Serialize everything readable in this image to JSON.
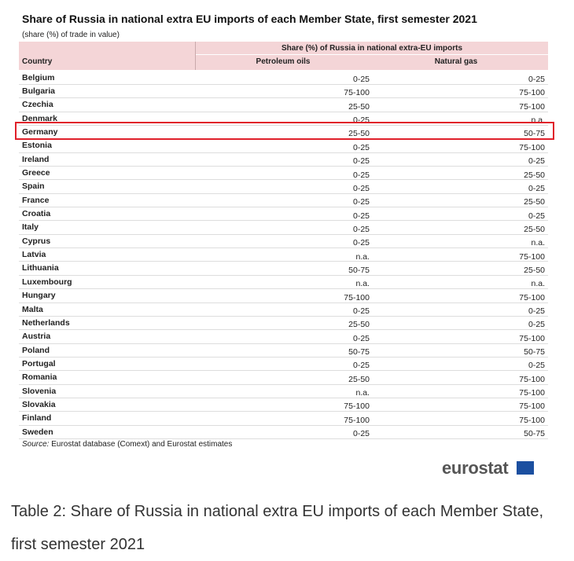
{
  "title": "Share of Russia in national extra EU imports of each Member State, first semester 2021",
  "subtitle": "(share (%) of trade in value)",
  "table": {
    "group_header": "Share (%) of Russia in national extra-EU imports",
    "columns": [
      "Country",
      "Petroleum oils",
      "Natural gas"
    ],
    "rows": [
      [
        "Belgium",
        "0-25",
        "0-25"
      ],
      [
        "Bulgaria",
        "75-100",
        "75-100"
      ],
      [
        "Czechia",
        "25-50",
        "75-100"
      ],
      [
        "Denmark",
        "0-25",
        "n.a."
      ],
      [
        "Germany",
        "25-50",
        "50-75"
      ],
      [
        "Estonia",
        "0-25",
        "75-100"
      ],
      [
        "Ireland",
        "0-25",
        "0-25"
      ],
      [
        "Greece",
        "0-25",
        "25-50"
      ],
      [
        "Spain",
        "0-25",
        "0-25"
      ],
      [
        "France",
        "0-25",
        "25-50"
      ],
      [
        "Croatia",
        "0-25",
        "0-25"
      ],
      [
        "Italy",
        "0-25",
        "25-50"
      ],
      [
        "Cyprus",
        "0-25",
        "n.a."
      ],
      [
        "Latvia",
        "n.a.",
        "75-100"
      ],
      [
        "Lithuania",
        "50-75",
        "25-50"
      ],
      [
        "Luxembourg",
        "n.a.",
        "n.a."
      ],
      [
        "Hungary",
        "75-100",
        "75-100"
      ],
      [
        "Malta",
        "0-25",
        "0-25"
      ],
      [
        "Netherlands",
        "25-50",
        "0-25"
      ],
      [
        "Austria",
        "0-25",
        "75-100"
      ],
      [
        "Poland",
        "50-75",
        "50-75"
      ],
      [
        "Portugal",
        "0-25",
        "0-25"
      ],
      [
        "Romania",
        "25-50",
        "75-100"
      ],
      [
        "Slovenia",
        "n.a.",
        "75-100"
      ],
      [
        "Slovakia",
        "75-100",
        "75-100"
      ],
      [
        "Finland",
        "75-100",
        "75-100"
      ],
      [
        "Sweden",
        "0-25",
        "50-75"
      ]
    ]
  },
  "source_label": "Source:",
  "source_text": "Eurostat database (Comext) and Eurostat estimates",
  "logo": "eurostat",
  "caption": "Table 2: Share of Russia in national extra EU imports of each Member State, first semester 2021"
}
